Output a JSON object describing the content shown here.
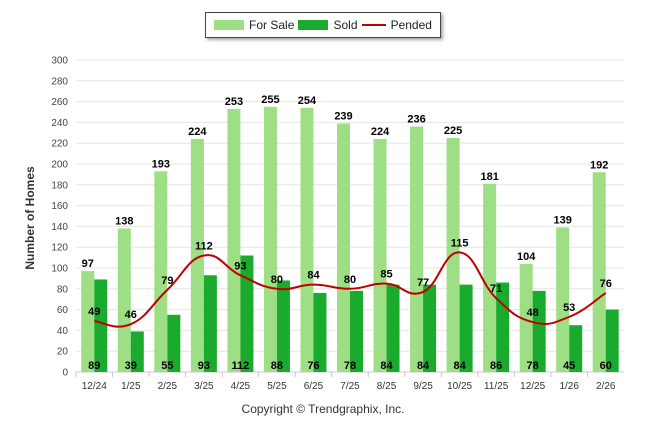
{
  "chart_data": {
    "type": "bar",
    "title": "",
    "xlabel": "",
    "ylabel": "Number of Homes",
    "ylim": [
      0,
      300
    ],
    "ytick_step": 20,
    "categories": [
      "12/24",
      "1/25",
      "2/25",
      "3/25",
      "4/25",
      "5/25",
      "6/25",
      "7/25",
      "8/25",
      "9/25",
      "10/25",
      "11/25",
      "12/25",
      "1/26",
      "2/26"
    ],
    "series": [
      {
        "name": "For Sale",
        "kind": "bar",
        "color": "#9ede84",
        "values": [
          97,
          138,
          193,
          224,
          253,
          255,
          254,
          239,
          224,
          236,
          225,
          181,
          104,
          139,
          192
        ]
      },
      {
        "name": "Sold",
        "kind": "bar",
        "color": "#1aab2e",
        "values": [
          89,
          39,
          55,
          93,
          112,
          88,
          76,
          78,
          84,
          84,
          84,
          86,
          78,
          45,
          60
        ]
      },
      {
        "name": "Pended",
        "kind": "line",
        "color": "#c00000",
        "values": [
          49,
          46,
          79,
          112,
          93,
          80,
          84,
          80,
          85,
          77,
          115,
          71,
          48,
          53,
          76
        ]
      }
    ],
    "legend_position": "top-center"
  },
  "legend": {
    "for_sale": "For Sale",
    "sold": "Sold",
    "pended": "Pended"
  },
  "footer": {
    "copyright": "Copyright © Trendgraphix, Inc."
  }
}
